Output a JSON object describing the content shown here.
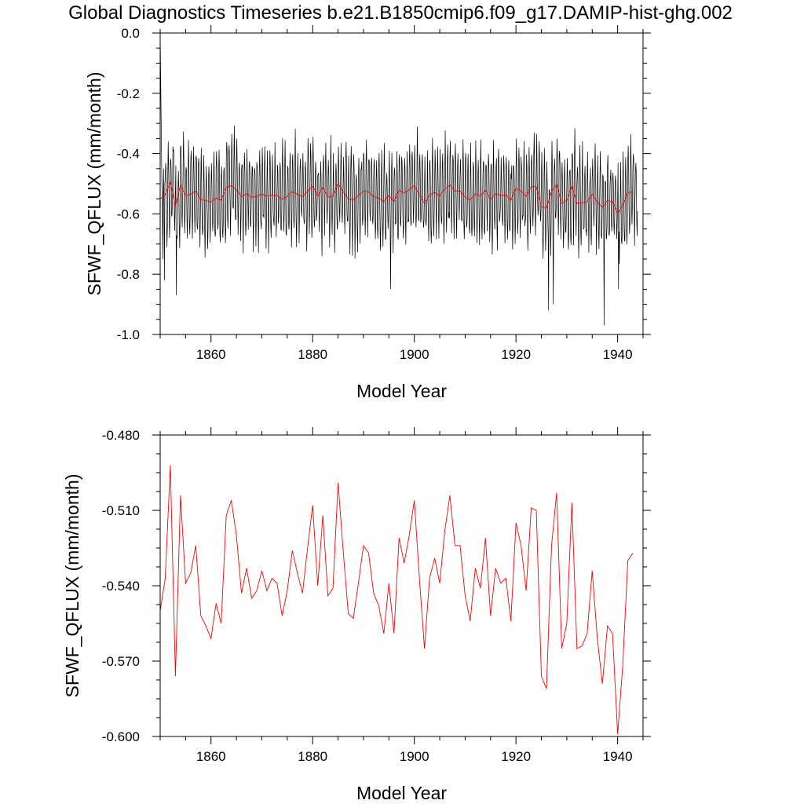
{
  "title": "Global Diagnostics Timeseries b.e21.B1850cmip6.f09_g17.DAMIP-hist-ghg.002",
  "chart_data": [
    {
      "type": "line",
      "xlabel": "Model Year",
      "ylabel": "SFWF_QFLUX (mm/month)",
      "xlim": [
        1850,
        1945
      ],
      "ylim": [
        -1.0,
        0.0
      ],
      "xticks": [
        1860,
        1880,
        1900,
        1920,
        1940
      ],
      "xtick_labels": [
        "1860",
        "1880",
        "1900",
        "1920",
        "1940"
      ],
      "yticks": [
        0.0,
        -0.2,
        -0.4,
        -0.6,
        -0.8,
        -1.0
      ],
      "ytick_labels": [
        "0.0",
        "-0.2",
        "-0.4",
        "-0.6",
        "-0.8",
        "-1.0"
      ],
      "grid": false,
      "legend": "none",
      "series": [
        {
          "kind": "monthly",
          "color": "#000000",
          "start_year": 1850,
          "steps_per_year": 12,
          "initial_values": [
            0.0,
            -0.12,
            -0.25,
            -0.38,
            -0.5,
            -0.58,
            -0.75,
            -0.55,
            -0.45,
            -0.6,
            -0.82,
            -0.5
          ],
          "annual_cycle_amplitude": 0.13,
          "low_extremes": [
            [
              1853.2,
              -0.87
            ],
            [
              1895.3,
              -0.85
            ],
            [
              1926.4,
              -0.92
            ],
            [
              1927.3,
              -0.9
            ],
            [
              1937.3,
              -0.97
            ],
            [
              1940.2,
              -0.85
            ]
          ]
        },
        {
          "kind": "annual",
          "color": "#ff0000",
          "values": [
            -0.55,
            -0.537,
            -0.492,
            -0.576,
            -0.504,
            -0.539,
            -0.535,
            -0.524,
            -0.552,
            -0.556,
            -0.561,
            -0.547,
            -0.555,
            -0.512,
            -0.506,
            -0.52,
            -0.543,
            -0.533,
            -0.545,
            -0.542,
            -0.534,
            -0.542,
            -0.537,
            -0.539,
            -0.552,
            -0.542,
            -0.526,
            -0.535,
            -0.543,
            -0.525,
            -0.508,
            -0.54,
            -0.512,
            -0.544,
            -0.541,
            -0.499,
            -0.526,
            -0.551,
            -0.553,
            -0.539,
            -0.524,
            -0.527,
            -0.543,
            -0.548,
            -0.559,
            -0.539,
            -0.559,
            -0.521,
            -0.531,
            -0.52,
            -0.506,
            -0.537,
            -0.565,
            -0.537,
            -0.529,
            -0.539,
            -0.518,
            -0.504,
            -0.524,
            -0.524,
            -0.544,
            -0.554,
            -0.533,
            -0.541,
            -0.521,
            -0.552,
            -0.533,
            -0.539,
            -0.537,
            -0.554,
            -0.515,
            -0.524,
            -0.542,
            -0.509,
            -0.51,
            -0.576,
            -0.581,
            -0.524,
            -0.503,
            -0.565,
            -0.555,
            -0.507,
            -0.565,
            -0.564,
            -0.559,
            -0.534,
            -0.561,
            -0.579,
            -0.556,
            -0.559,
            -0.599,
            -0.572,
            -0.53,
            -0.527
          ]
        }
      ]
    },
    {
      "type": "line",
      "xlabel": "Model Year",
      "ylabel": "SFWF_QFLUX (mm/month)",
      "xlim": [
        1850,
        1945
      ],
      "ylim": [
        -0.6,
        -0.48
      ],
      "xticks": [
        1860,
        1880,
        1900,
        1920,
        1940
      ],
      "xtick_labels": [
        "1860",
        "1880",
        "1900",
        "1920",
        "1940"
      ],
      "yticks": [
        -0.48,
        -0.51,
        -0.54,
        -0.57,
        -0.6
      ],
      "ytick_labels": [
        "-0.480",
        "-0.510",
        "-0.540",
        "-0.570",
        "-0.600"
      ],
      "grid": false,
      "legend": "none",
      "series": [
        {
          "kind": "annual",
          "color": "#ff0000",
          "values": [
            -0.55,
            -0.537,
            -0.492,
            -0.576,
            -0.504,
            -0.539,
            -0.535,
            -0.524,
            -0.552,
            -0.556,
            -0.561,
            -0.547,
            -0.555,
            -0.512,
            -0.506,
            -0.52,
            -0.543,
            -0.533,
            -0.545,
            -0.542,
            -0.534,
            -0.542,
            -0.537,
            -0.539,
            -0.552,
            -0.542,
            -0.526,
            -0.535,
            -0.543,
            -0.525,
            -0.508,
            -0.54,
            -0.512,
            -0.544,
            -0.541,
            -0.499,
            -0.526,
            -0.551,
            -0.553,
            -0.539,
            -0.524,
            -0.527,
            -0.543,
            -0.548,
            -0.559,
            -0.539,
            -0.559,
            -0.521,
            -0.531,
            -0.52,
            -0.506,
            -0.537,
            -0.565,
            -0.537,
            -0.529,
            -0.539,
            -0.518,
            -0.504,
            -0.524,
            -0.524,
            -0.544,
            -0.554,
            -0.533,
            -0.541,
            -0.521,
            -0.552,
            -0.533,
            -0.539,
            -0.537,
            -0.554,
            -0.515,
            -0.524,
            -0.542,
            -0.509,
            -0.51,
            -0.576,
            -0.581,
            -0.524,
            -0.503,
            -0.565,
            -0.555,
            -0.507,
            -0.565,
            -0.564,
            -0.559,
            -0.534,
            -0.561,
            -0.579,
            -0.556,
            -0.559,
            -0.599,
            -0.572,
            -0.53,
            -0.527
          ]
        }
      ]
    }
  ]
}
